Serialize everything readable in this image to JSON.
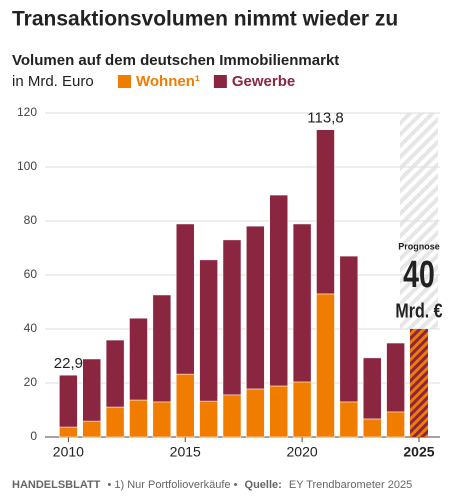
{
  "chart_data": {
    "type": "stacked_bar",
    "title": "Transaktionsvolumen nimmt wieder zu",
    "subtitle": "Volumen auf dem deutschen Immobilienmarkt",
    "y_label": "in Mrd. Euro",
    "x": [
      2010,
      2011,
      2012,
      2013,
      2014,
      2015,
      2016,
      2017,
      2018,
      2019,
      2020,
      2021,
      2022,
      2023,
      2024,
      2025
    ],
    "xlim": [
      2009,
      2025.9
    ],
    "xticks": [
      2010,
      2015,
      2020,
      2025
    ],
    "series": [
      {
        "name": "Wohnen¹",
        "color": "#f07d00",
        "values": [
          3.7,
          5.9,
          11.1,
          13.7,
          13,
          23.3,
          13.3,
          15.6,
          17.8,
          18.9,
          20.4,
          53,
          13,
          6.7,
          9.3,
          null
        ]
      },
      {
        "name": "Gewerbe",
        "color": "#8b2641",
        "values": [
          19.2,
          23,
          24.8,
          30.3,
          39.6,
          55.6,
          52.3,
          57.4,
          60.3,
          70.7,
          58.5,
          60.8,
          54,
          22.6,
          25.5,
          null
        ]
      }
    ],
    "annotations": [
      {
        "x": 2010,
        "value": 22.9,
        "label": "22,9"
      },
      {
        "x": 2021,
        "value": 113.8,
        "label": "113,8"
      }
    ],
    "forecast": {
      "x": 2025,
      "value": 40,
      "label": "Prognose",
      "value_label": "40",
      "unit": "Mrd. €"
    },
    "ylim": [
      0,
      120
    ],
    "yticks": [
      0,
      20,
      40,
      60,
      80,
      100,
      120
    ],
    "grid": true,
    "footer": {
      "source_name": "HANDELSBLATT",
      "note": "• 1) Nur Portfolioverkäufe •",
      "source_label": "Quelle:",
      "source": "EY Trendbarometer 2025"
    }
  }
}
